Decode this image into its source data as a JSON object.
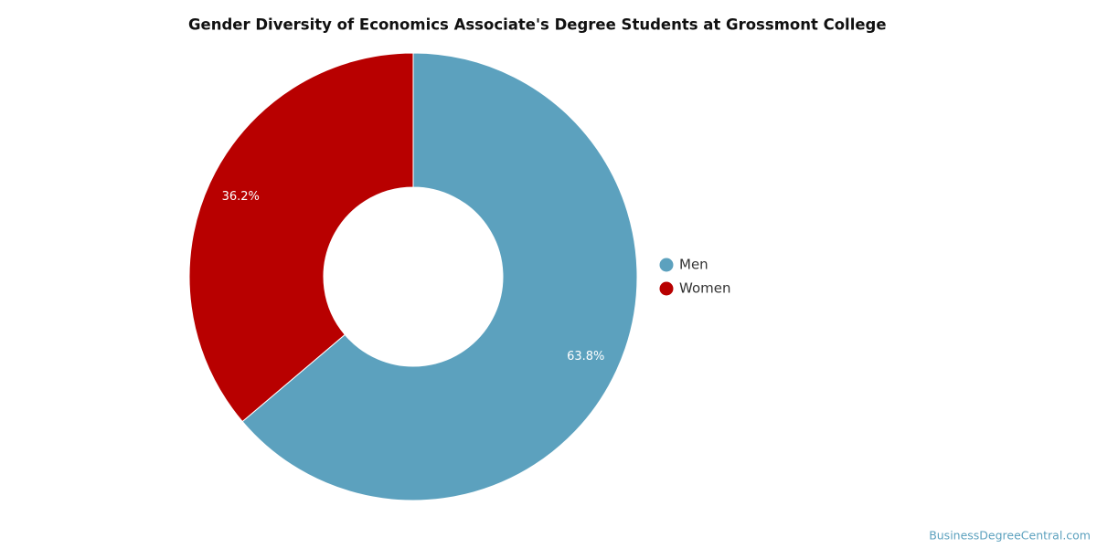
{
  "chart_data": {
    "type": "donut",
    "title": "Gender Diversity of Economics Associate's Degree Students at Grossmont College",
    "categories": [
      "Men",
      "Women"
    ],
    "values": [
      63.8,
      36.2
    ],
    "value_labels": [
      "63.8%",
      "36.2%"
    ],
    "colors": [
      "#5ca1be",
      "#b80000"
    ],
    "legend": "right",
    "credit": "BusinessDegreeCentral.com"
  }
}
